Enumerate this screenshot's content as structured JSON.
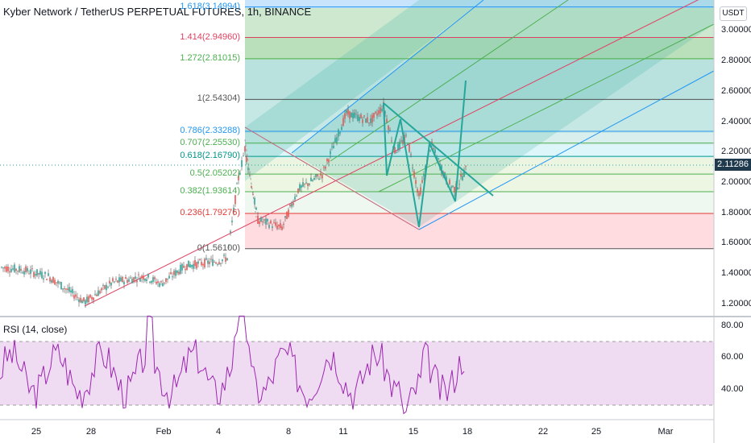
{
  "header": {
    "title": "Kyber Network / TetherUS PERPETUAL FUTURES, 1h, BINANCE",
    "currency": "USDT",
    "last_price": "2.11286"
  },
  "fib_levels": [
    {
      "label": "1.618(3.14994)",
      "price": 3.14994,
      "color": "#2196f3"
    },
    {
      "label": "1.414(2.94960)",
      "price": 2.9496,
      "color": "#e04060"
    },
    {
      "label": "1.272(2.81015)",
      "price": 2.81015,
      "color": "#4caf50"
    },
    {
      "label": "1(2.54304)",
      "price": 2.54304,
      "color": "#555555"
    },
    {
      "label": "0.786(2.33288)",
      "price": 2.33288,
      "color": "#2196f3"
    },
    {
      "label": "0.707(2.25530)",
      "price": 2.2553,
      "color": "#4caf50"
    },
    {
      "label": "0.618(2.16790)",
      "price": 2.1679,
      "color": "#009688"
    },
    {
      "label": "0.5(2.05202)",
      "price": 2.05202,
      "color": "#4caf50"
    },
    {
      "label": "0.382(1.93614)",
      "price": 1.93614,
      "color": "#4caf50"
    },
    {
      "label": "0.236(1.79276)",
      "price": 1.79276,
      "color": "#e53935"
    },
    {
      "label": "0(1.56100)",
      "price": 1.561,
      "color": "#555555"
    }
  ],
  "price_axis": [
    "3.00000",
    "2.80000",
    "2.60000",
    "2.40000",
    "2.20000",
    "2.00000",
    "1.80000",
    "1.60000",
    "1.40000",
    "1.20000"
  ],
  "rsi": {
    "title": "RSI (14, close)",
    "ticks": [
      "80.00",
      "60.00",
      "40.00"
    ],
    "upper_band": 70,
    "lower_band": 30,
    "line_color": "#9c27b0"
  },
  "time_axis": [
    "25",
    "28",
    "Feb",
    "4",
    "8",
    "11",
    "15",
    "18",
    "22",
    "25",
    "Mar"
  ],
  "colors": {
    "bull": "#26a69a",
    "bear": "#ef5350",
    "pitchfork_median": "#e04060",
    "pattern": "#26a69a"
  }
}
